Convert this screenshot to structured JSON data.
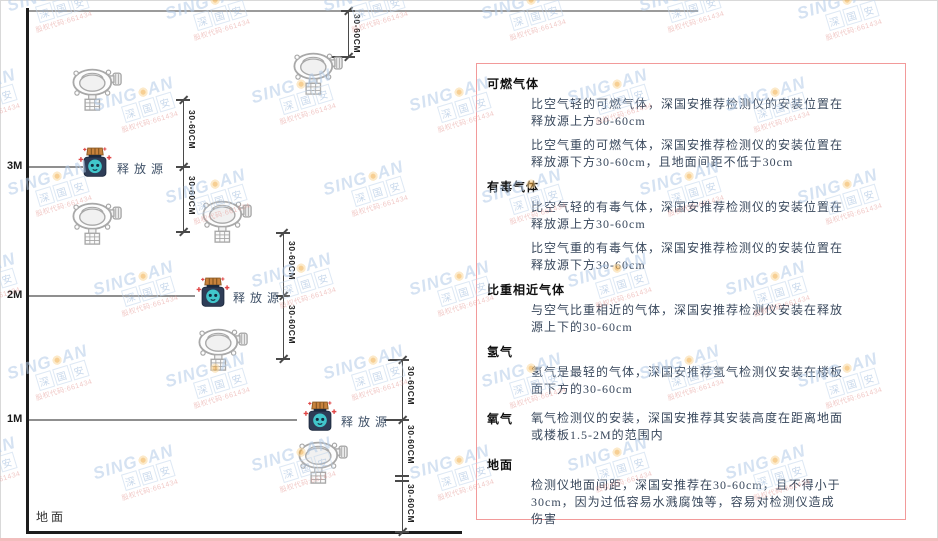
{
  "watermark": {
    "brand_left": "SING",
    "brand_right": "AN",
    "cjk": "深国安",
    "code": "股权代码:661434"
  },
  "diagram": {
    "height_labels": {
      "h3": "3M",
      "h2": "2M",
      "h1": "1M"
    },
    "ground_label": "地面",
    "source_label": "释放源",
    "dim_label": "30-60CM"
  },
  "panel": {
    "sections": [
      {
        "heading": "可燃气体",
        "paragraphs": [
          "比空气轻的可燃气体，深国安推荐检测仪的安装位置在释放源上方30-60cm",
          "比空气重的可燃气体，深国安推荐检测仪的安装位置在释放源下方30-60cm，且地面间距不低于30cm"
        ]
      },
      {
        "heading": "有毒气体",
        "paragraphs": [
          "比空气轻的有毒气体，深国安推荐检测仪的安装位置在释放源上方30-60cm",
          "比空气重的有毒气体，深国安推荐检测仪的安装位置在释放源下方30-60cm"
        ]
      },
      {
        "heading": "比重相近气体",
        "paragraphs": [
          "与空气比重相近的气体，深国安推荐检测仪安装在释放源上下的30-60cm"
        ]
      },
      {
        "heading": "氢气",
        "paragraphs": [
          "氢气是最轻的气体，深国安推荐氢气检测仪安装在楼板面下方的30-60cm"
        ]
      },
      {
        "heading": "氧气",
        "inline": true,
        "paragraphs": [
          "氧气检测仪的安装，深国安推荐其安装高度在距离地面或楼板1.5-2M的范围内"
        ]
      },
      {
        "heading": "地面",
        "paragraphs": [
          "检测仪地面间距，深国安推荐在30-60cm，且不得小于30cm，因为过低容易水溅腐蚀等，容易对检测仪造成伤害"
        ]
      }
    ]
  }
}
